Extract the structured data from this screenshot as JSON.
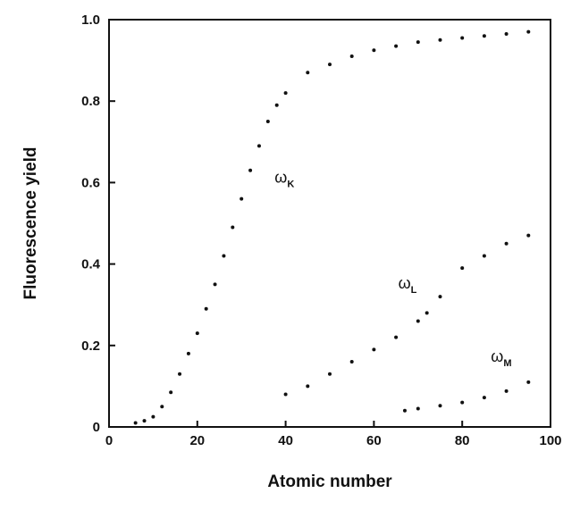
{
  "chart_data": {
    "type": "scatter",
    "title": "",
    "xlabel": "Atomic number",
    "ylabel": "Fluorescence yield",
    "xlim": [
      0,
      100
    ],
    "ylim": [
      0,
      1.0
    ],
    "x_ticks": [
      0,
      20,
      40,
      60,
      80,
      100
    ],
    "x_tick_labels": [
      "0",
      "20",
      "40",
      "60",
      "80",
      "100"
    ],
    "y_ticks": [
      0,
      0.2,
      0.4,
      0.6,
      0.8,
      1.0
    ],
    "y_tick_labels": [
      "0",
      "0.2",
      "0.4",
      "0.6",
      "0.8",
      "1.0"
    ],
    "grid": false,
    "legend": "none",
    "point_color": "#111111",
    "series": [
      {
        "name": "ωK",
        "label_main": "ω",
        "label_sub": "K",
        "label_at": [
          37.5,
          0.6
        ],
        "x": [
          6,
          8,
          10,
          12,
          14,
          16,
          18,
          20,
          22,
          24,
          26,
          28,
          30,
          32,
          34,
          36,
          38,
          40,
          45,
          50,
          55,
          60,
          65,
          70,
          75,
          80,
          85,
          90,
          95
        ],
        "y": [
          0.01,
          0.015,
          0.025,
          0.05,
          0.085,
          0.13,
          0.18,
          0.23,
          0.29,
          0.35,
          0.42,
          0.49,
          0.56,
          0.63,
          0.69,
          0.75,
          0.79,
          0.82,
          0.87,
          0.89,
          0.91,
          0.925,
          0.935,
          0.945,
          0.95,
          0.955,
          0.96,
          0.965,
          0.97
        ]
      },
      {
        "name": "ωL",
        "label_main": "ω",
        "label_sub": "L",
        "label_at": [
          65.5,
          0.34
        ],
        "x": [
          40,
          45,
          50,
          55,
          60,
          65,
          70,
          72,
          75,
          80,
          85,
          90,
          95
        ],
        "y": [
          0.08,
          0.1,
          0.13,
          0.16,
          0.19,
          0.22,
          0.26,
          0.28,
          0.32,
          0.39,
          0.42,
          0.45,
          0.47
        ]
      },
      {
        "name": "ωM",
        "label_main": "ω",
        "label_sub": "M",
        "label_at": [
          86.5,
          0.16
        ],
        "x": [
          67,
          70,
          75,
          80,
          85,
          90,
          95
        ],
        "y": [
          0.04,
          0.045,
          0.052,
          0.06,
          0.072,
          0.088,
          0.11
        ]
      }
    ]
  }
}
